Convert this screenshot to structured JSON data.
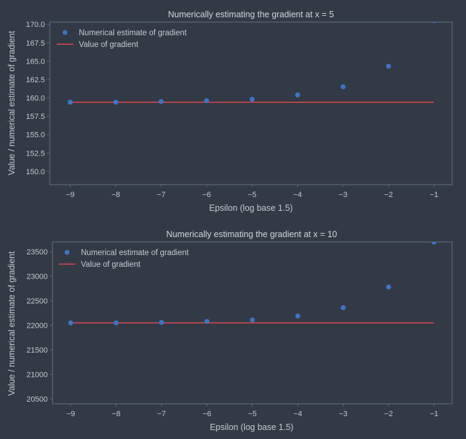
{
  "colors": {
    "background": "#323a45",
    "frame": "#5c6877",
    "text": "#c3c9d1",
    "points": "#3f73c8",
    "line": "#c5464e"
  },
  "chart_data": [
    {
      "type": "scatter",
      "title": "Numerically estimating the gradient at x = 5",
      "xlabel": "Epsilon (log base 1.5)",
      "ylabel": "Value / numerical estimate of gradient",
      "xlim": [
        -9.45,
        -0.6
      ],
      "ylim": [
        148.2,
        170.3
      ],
      "xticks": [
        -9,
        -8,
        -7,
        -6,
        -5,
        -4,
        -3,
        -2,
        -1
      ],
      "xtick_labels": [
        "−9",
        "−8",
        "−7",
        "−6",
        "−5",
        "−4",
        "−3",
        "−2",
        "−1"
      ],
      "yticks": [
        150.0,
        152.5,
        155.0,
        157.5,
        160.0,
        162.5,
        165.0,
        167.5,
        170.0
      ],
      "ytick_labels": [
        "150.0",
        "152.5",
        "155.0",
        "157.5",
        "160.0",
        "162.5",
        "165.0",
        "167.5",
        "170.0"
      ],
      "grid": false,
      "legend_position": "top-left",
      "series": [
        {
          "name": "Numerical estimate of gradient",
          "kind": "scatter",
          "x": [
            -9,
            -8,
            -7,
            -6,
            -5,
            -4,
            -3,
            -2,
            -1
          ],
          "y": [
            159.4,
            159.4,
            159.5,
            159.6,
            159.8,
            160.4,
            161.5,
            164.3,
            170.5
          ]
        },
        {
          "name": "Value of gradient",
          "kind": "line",
          "x": [
            -9,
            -1
          ],
          "y": [
            159.4,
            159.4
          ]
        }
      ]
    },
    {
      "type": "scatter",
      "title": "Numerically estimating the gradient at x = 10",
      "xlabel": "Epsilon (log base 1.5)",
      "ylabel": "Value / numerical estimate of gradient",
      "xlim": [
        -9.4,
        -0.6
      ],
      "ylim": [
        20400,
        23700
      ],
      "xticks": [
        -9,
        -8,
        -7,
        -6,
        -5,
        -4,
        -3,
        -2,
        -1
      ],
      "xtick_labels": [
        "−9",
        "−8",
        "−7",
        "−6",
        "−5",
        "−4",
        "−3",
        "−2",
        "−1"
      ],
      "yticks": [
        20500,
        21000,
        21500,
        22000,
        22500,
        23000,
        23500
      ],
      "ytick_labels": [
        "20500",
        "21000",
        "21500",
        "22000",
        "22500",
        "23000",
        "23500"
      ],
      "grid": false,
      "legend_position": "top-left",
      "series": [
        {
          "name": "Numerical estimate of gradient",
          "kind": "scatter",
          "x": [
            -9,
            -8,
            -7,
            -6,
            -5,
            -4,
            -3,
            -2,
            -1
          ],
          "y": [
            22050,
            22050,
            22060,
            22080,
            22110,
            22190,
            22360,
            22780,
            23700
          ]
        },
        {
          "name": "Value of gradient",
          "kind": "line",
          "x": [
            -9,
            -1
          ],
          "y": [
            22050,
            22050
          ]
        }
      ]
    }
  ]
}
